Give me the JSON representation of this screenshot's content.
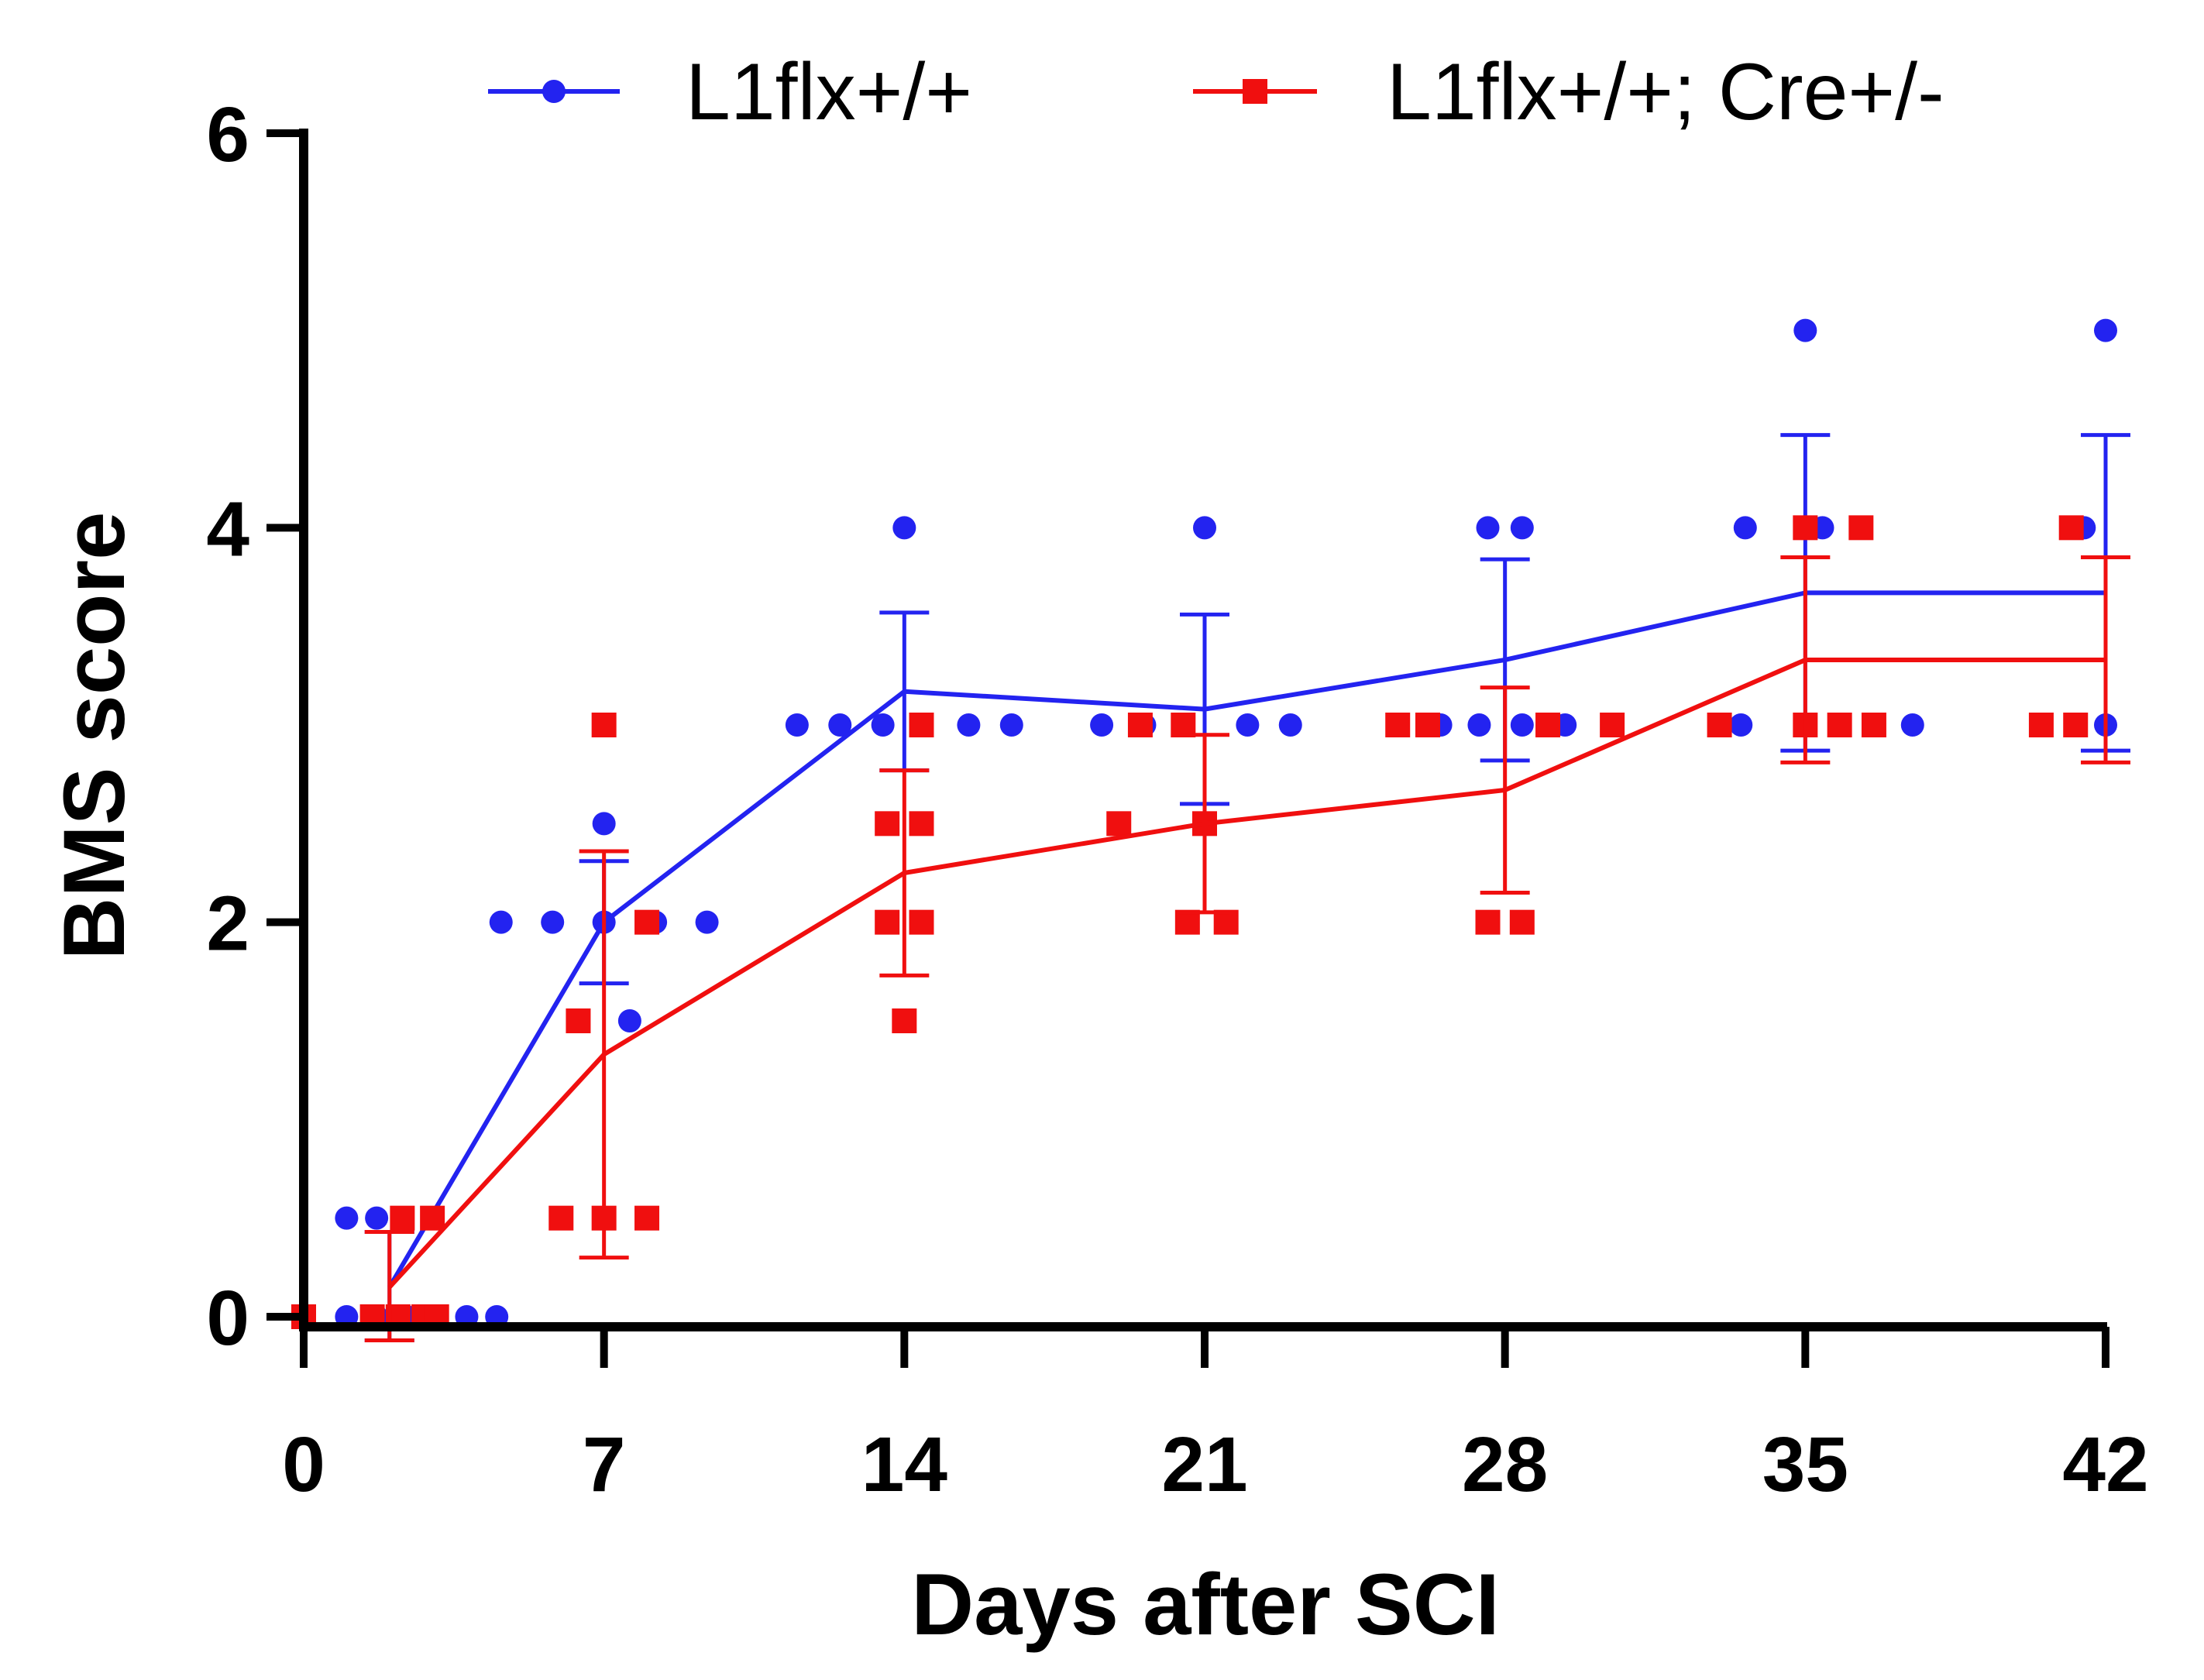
{
  "chart_data": {
    "type": "line",
    "title": "",
    "xlabel": "Days after SCI",
    "ylabel": "BMS score",
    "xlim": [
      0,
      42
    ],
    "ylim": [
      0,
      6
    ],
    "xticks": [
      0,
      7,
      14,
      21,
      28,
      35,
      42
    ],
    "yticks": [
      0,
      2,
      4,
      6
    ],
    "xtick_labels": [
      "0",
      "7",
      "14",
      "21",
      "28",
      "35",
      "42"
    ],
    "ytick_labels": [
      "0",
      "2",
      "4",
      "6"
    ],
    "grid": false,
    "legend_position": "top",
    "series": [
      {
        "name": "L1flx+/+",
        "color": "#2323f0",
        "marker": "circle",
        "x": [
          2,
          7,
          14,
          21,
          28,
          35,
          42
        ],
        "mean": [
          0.15,
          2.0,
          3.17,
          3.08,
          3.33,
          3.67,
          3.67
        ],
        "error": [
          0.28,
          0.31,
          0.4,
          0.48,
          0.51,
          0.8,
          0.8
        ],
        "points": [
          [
            1,
            0.5
          ],
          [
            1.7,
            0.5
          ],
          [
            2.3,
            0.5
          ],
          [
            1,
            0
          ],
          [
            1.7,
            0
          ],
          [
            2.4,
            0
          ],
          [
            3.1,
            0
          ],
          [
            3.8,
            0
          ],
          [
            4.5,
            0
          ],
          [
            4.6,
            2
          ],
          [
            5.8,
            2
          ],
          [
            7,
            2
          ],
          [
            8.2,
            2
          ],
          [
            9.4,
            2
          ],
          [
            7,
            2.5
          ],
          [
            7.6,
            1.5
          ],
          [
            14,
            4
          ],
          [
            11.5,
            3
          ],
          [
            12.5,
            3
          ],
          [
            13.5,
            3
          ],
          [
            15.5,
            3
          ],
          [
            16.5,
            3
          ],
          [
            21,
            4
          ],
          [
            18.6,
            3
          ],
          [
            19.6,
            3
          ],
          [
            22,
            3
          ],
          [
            23,
            3
          ],
          [
            21,
            2.5
          ],
          [
            27.6,
            4
          ],
          [
            28.4,
            4
          ],
          [
            26.5,
            3
          ],
          [
            27.4,
            3
          ],
          [
            28.4,
            3
          ],
          [
            29.4,
            3
          ],
          [
            35,
            5
          ],
          [
            33.6,
            4
          ],
          [
            35.4,
            4
          ],
          [
            33.5,
            3
          ],
          [
            35,
            3
          ],
          [
            37.5,
            3
          ],
          [
            42,
            5
          ],
          [
            41.5,
            4
          ],
          [
            42,
            3
          ]
        ]
      },
      {
        "name": "L1flx+/+; Cre+/-",
        "color": "#f00f0f",
        "marker": "square",
        "x": [
          2,
          7,
          14,
          21,
          28,
          35,
          42
        ],
        "mean": [
          0.15,
          1.33,
          2.25,
          2.5,
          2.67,
          3.33,
          3.33
        ],
        "error": [
          0.28,
          1.03,
          0.52,
          0.45,
          0.52,
          0.52,
          0.52
        ],
        "points": [
          [
            0,
            0
          ],
          [
            1.6,
            0
          ],
          [
            2.2,
            0
          ],
          [
            2.8,
            0
          ],
          [
            3.1,
            0
          ],
          [
            2.3,
            0.5
          ],
          [
            3.0,
            0.5
          ],
          [
            7,
            3
          ],
          [
            6.4,
            1.5
          ],
          [
            8.0,
            2
          ],
          [
            6.0,
            0.5
          ],
          [
            7,
            0.5
          ],
          [
            8.0,
            0.5
          ],
          [
            14.4,
            3
          ],
          [
            13.6,
            2.5
          ],
          [
            14.4,
            2.5
          ],
          [
            13.6,
            2
          ],
          [
            14.4,
            2
          ],
          [
            14,
            1.5
          ],
          [
            19.5,
            3
          ],
          [
            20.5,
            3
          ],
          [
            19.0,
            2.5
          ],
          [
            21.0,
            2.5
          ],
          [
            21.5,
            2
          ],
          [
            20.6,
            2
          ],
          [
            25.5,
            3
          ],
          [
            26.2,
            3
          ],
          [
            29.0,
            3
          ],
          [
            30.5,
            3
          ],
          [
            27.6,
            2
          ],
          [
            28.4,
            2
          ],
          [
            35,
            4
          ],
          [
            36.3,
            4
          ],
          [
            33.0,
            3
          ],
          [
            35,
            3
          ],
          [
            35.8,
            3
          ],
          [
            36.6,
            3
          ],
          [
            41.2,
            4
          ],
          [
            40.5,
            3
          ],
          [
            41.3,
            3
          ]
        ]
      }
    ]
  }
}
